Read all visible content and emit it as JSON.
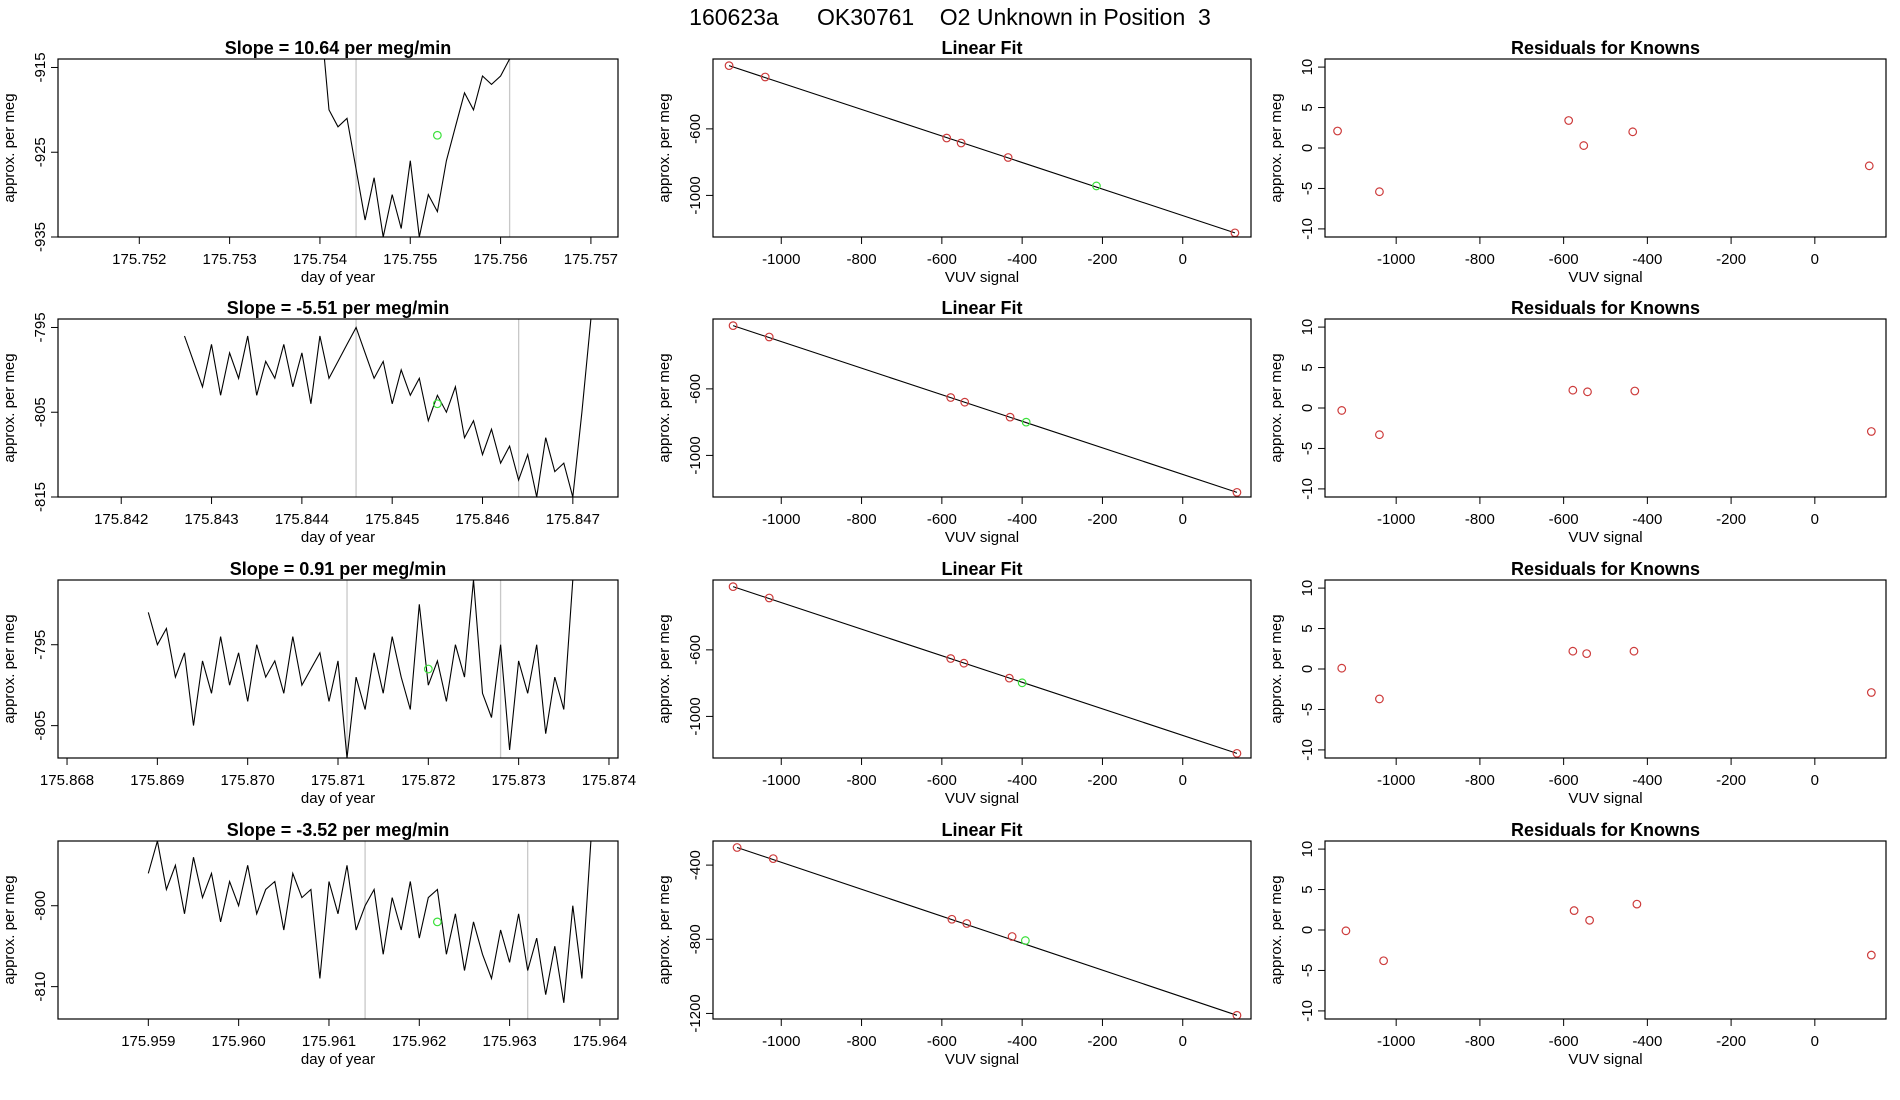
{
  "page_title": "160623a      OK30761    O2 Unknown in Position  3",
  "colors": {
    "line": "#000000",
    "known_point": "#cd3b3b",
    "unknown_point": "#3be03b",
    "vline": "#c8c8c8"
  },
  "chart_data": [
    {
      "type": "line",
      "title": "Slope =  10.64  per meg/min",
      "xlabel": "day of year",
      "ylabel": "approx. per meg",
      "xlim": [
        175.7511,
        175.7573
      ],
      "ylim": [
        -935,
        -914
      ],
      "xticks": [
        175.752,
        175.753,
        175.754,
        175.755,
        175.756,
        175.757
      ],
      "xtick_labels": [
        "175.752",
        "175.753",
        "175.754",
        "175.755",
        "175.756",
        "175.757"
      ],
      "yticks": [
        -915,
        -925,
        -935
      ],
      "ytick_labels": [
        "-915",
        "-925",
        "-935"
      ],
      "vlines": [
        175.7544,
        175.7561
      ],
      "unknown_point": {
        "x": 175.7553,
        "y": -923
      },
      "x": [
        175.754,
        175.7541,
        175.7542,
        175.7543,
        175.7544,
        175.7545,
        175.7546,
        175.7547,
        175.7548,
        175.7549,
        175.755,
        175.7551,
        175.7552,
        175.7553,
        175.7554,
        175.7555,
        175.7556,
        175.7557,
        175.7558,
        175.7559,
        175.756,
        175.7561
      ],
      "y": [
        -908,
        -920,
        -922,
        -921,
        -927,
        -933,
        -928,
        -935,
        -930,
        -934,
        -926,
        -935,
        -930,
        -932,
        -926,
        -922,
        -918,
        -920,
        -916,
        -917,
        -916,
        -914
      ]
    },
    {
      "type": "scatter",
      "title": "Linear Fit",
      "fit_line": true,
      "xlabel": "VUV signal",
      "ylabel": "approx. per meg",
      "xlim": [
        -1170,
        170
      ],
      "ylim": [
        -1250,
        -180
      ],
      "xticks": [
        -1000,
        -800,
        -600,
        -400,
        -200,
        0
      ],
      "xtick_labels": [
        "-1000",
        "-800",
        "-600",
        "-400",
        "-200",
        "0"
      ],
      "yticks": [
        -600,
        -1000
      ],
      "ytick_labels": [
        "-600",
        "-1000"
      ],
      "points": [
        {
          "x": -1130,
          "y": -220
        },
        {
          "x": -1040,
          "y": -288
        },
        {
          "x": -588,
          "y": -655
        },
        {
          "x": -552,
          "y": -685
        },
        {
          "x": -435,
          "y": -772
        },
        {
          "x": -215,
          "y": -943
        },
        {
          "x": 130,
          "y": -1225
        }
      ],
      "unknown_index": 5
    },
    {
      "type": "scatter",
      "title": "Residuals for Knowns",
      "xlabel": "VUV signal",
      "ylabel": "approx. per meg",
      "xlim": [
        -1170,
        170
      ],
      "ylim": [
        -11,
        11
      ],
      "xticks": [
        -1000,
        -800,
        -600,
        -400,
        -200,
        0
      ],
      "xtick_labels": [
        "-1000",
        "-800",
        "-600",
        "-400",
        "-200",
        "0"
      ],
      "yticks": [
        10,
        5,
        0,
        -5,
        -10
      ],
      "ytick_labels": [
        "10",
        "5",
        "0",
        "-5",
        "-10"
      ],
      "points": [
        {
          "x": -1140,
          "y": 2.1
        },
        {
          "x": -1040,
          "y": -5.4
        },
        {
          "x": -588,
          "y": 3.4
        },
        {
          "x": -552,
          "y": 0.3
        },
        {
          "x": -435,
          "y": 2.0
        },
        {
          "x": 130,
          "y": -2.2
        }
      ]
    },
    {
      "type": "line",
      "title": "Slope =  -5.51  per meg/min",
      "xlabel": "day of year",
      "ylabel": "approx. per meg",
      "xlim": [
        175.8413,
        175.8475
      ],
      "ylim": [
        -815,
        -794
      ],
      "xticks": [
        175.842,
        175.843,
        175.844,
        175.845,
        175.846,
        175.847
      ],
      "xtick_labels": [
        "175.842",
        "175.843",
        "175.844",
        "175.845",
        "175.846",
        "175.847"
      ],
      "yticks": [
        -795,
        -805,
        -815
      ],
      "ytick_labels": [
        "-795",
        "-805",
        "-815"
      ],
      "vlines": [
        175.8446,
        175.8464
      ],
      "unknown_point": {
        "x": 175.8455,
        "y": -804
      },
      "x": [
        175.8427,
        175.8428,
        175.8429,
        175.843,
        175.8431,
        175.8432,
        175.8433,
        175.8434,
        175.8435,
        175.8436,
        175.8437,
        175.8438,
        175.8439,
        175.844,
        175.8441,
        175.8442,
        175.8443,
        175.8444,
        175.8445,
        175.8446,
        175.8447,
        175.8448,
        175.8449,
        175.845,
        175.8451,
        175.8452,
        175.8453,
        175.8454,
        175.8455,
        175.8456,
        175.8457,
        175.8458,
        175.8459,
        175.846,
        175.8461,
        175.8462,
        175.8463,
        175.8464,
        175.8465,
        175.8466,
        175.8467,
        175.8468,
        175.8469,
        175.847,
        175.8471,
        175.8472
      ],
      "y": [
        -796,
        -799,
        -802,
        -797,
        -803,
        -798,
        -801,
        -796,
        -803,
        -799,
        -801,
        -797,
        -802,
        -798,
        -804,
        -796,
        -801,
        -799,
        -797,
        -795,
        -798,
        -801,
        -799,
        -804,
        -800,
        -803,
        -801,
        -806,
        -803,
        -805,
        -802,
        -808,
        -806,
        -810,
        -807,
        -811,
        -809,
        -813,
        -810,
        -815,
        -808,
        -812,
        -811,
        -815,
        -805,
        -794
      ]
    },
    {
      "type": "scatter",
      "title": "Linear Fit",
      "fit_line": true,
      "xlabel": "VUV signal",
      "ylabel": "approx. per meg",
      "xlim": [
        -1170,
        170
      ],
      "ylim": [
        -1250,
        -180
      ],
      "xticks": [
        -1000,
        -800,
        -600,
        -400,
        -200,
        0
      ],
      "xtick_labels": [
        "-1000",
        "-800",
        "-600",
        "-400",
        "-200",
        "0"
      ],
      "yticks": [
        -600,
        -1000
      ],
      "ytick_labels": [
        "-600",
        "-1000"
      ],
      "points": [
        {
          "x": -1120,
          "y": -220
        },
        {
          "x": -1030,
          "y": -288
        },
        {
          "x": -578,
          "y": -652
        },
        {
          "x": -543,
          "y": -680
        },
        {
          "x": -430,
          "y": -770
        },
        {
          "x": -390,
          "y": -800
        },
        {
          "x": 135,
          "y": -1222
        }
      ],
      "unknown_index": 5
    },
    {
      "type": "scatter",
      "title": "Residuals for Knowns",
      "xlabel": "VUV signal",
      "ylabel": "approx. per meg",
      "xlim": [
        -1170,
        170
      ],
      "ylim": [
        -11,
        11
      ],
      "xticks": [
        -1000,
        -800,
        -600,
        -400,
        -200,
        0
      ],
      "xtick_labels": [
        "-1000",
        "-800",
        "-600",
        "-400",
        "-200",
        "0"
      ],
      "yticks": [
        10,
        5,
        0,
        -5,
        -10
      ],
      "ytick_labels": [
        "10",
        "5",
        "0",
        "-5",
        "-10"
      ],
      "points": [
        {
          "x": -1130,
          "y": -0.3
        },
        {
          "x": -1040,
          "y": -3.3
        },
        {
          "x": -578,
          "y": 2.2
        },
        {
          "x": -543,
          "y": 2.0
        },
        {
          "x": -430,
          "y": 2.1
        },
        {
          "x": 135,
          "y": -2.9
        }
      ]
    },
    {
      "type": "line",
      "title": "Slope =  0.91  per meg/min",
      "xlabel": "day of year",
      "ylabel": "approx. per meg",
      "xlim": [
        175.8679,
        175.8741
      ],
      "ylim": [
        -809,
        -787
      ],
      "xticks": [
        175.868,
        175.869,
        175.87,
        175.871,
        175.872,
        175.873,
        175.874
      ],
      "xtick_labels": [
        "175.868",
        "175.869",
        "175.870",
        "175.871",
        "175.872",
        "175.873",
        "175.874"
      ],
      "yticks": [
        -795,
        -805
      ],
      "ytick_labels": [
        "-795",
        "-805"
      ],
      "vlines": [
        175.8711,
        175.8728
      ],
      "unknown_point": {
        "x": 175.872,
        "y": -798
      },
      "x": [
        175.8689,
        175.869,
        175.8691,
        175.8692,
        175.8693,
        175.8694,
        175.8695,
        175.8696,
        175.8697,
        175.8698,
        175.8699,
        175.87,
        175.8701,
        175.8702,
        175.8703,
        175.8704,
        175.8705,
        175.8706,
        175.8707,
        175.8708,
        175.8709,
        175.871,
        175.8711,
        175.8712,
        175.8713,
        175.8714,
        175.8715,
        175.8716,
        175.8717,
        175.8718,
        175.8719,
        175.872,
        175.8721,
        175.8722,
        175.8723,
        175.8724,
        175.8725,
        175.8726,
        175.8727,
        175.8728,
        175.8729,
        175.873,
        175.8731,
        175.8732,
        175.8733,
        175.8734,
        175.8735,
        175.8736
      ],
      "y": [
        -791,
        -795,
        -793,
        -799,
        -796,
        -805,
        -797,
        -801,
        -794,
        -800,
        -796,
        -802,
        -795,
        -799,
        -797,
        -801,
        -794,
        -800,
        -798,
        -796,
        -802,
        -797,
        -809,
        -799,
        -803,
        -796,
        -801,
        -794,
        -799,
        -803,
        -790,
        -800,
        -797,
        -802,
        -795,
        -799,
        -787,
        -801,
        -804,
        -795,
        -808,
        -797,
        -801,
        -795,
        -806,
        -799,
        -803,
        -787
      ]
    },
    {
      "type": "scatter",
      "title": "Linear Fit",
      "fit_line": true,
      "xlabel": "VUV signal",
      "ylabel": "approx. per meg",
      "xlim": [
        -1170,
        170
      ],
      "ylim": [
        -1250,
        -180
      ],
      "xticks": [
        -1000,
        -800,
        -600,
        -400,
        -200,
        0
      ],
      "xtick_labels": [
        "-1000",
        "-800",
        "-600",
        "-400",
        "-200",
        "0"
      ],
      "yticks": [
        -600,
        -1000
      ],
      "ytick_labels": [
        "-600",
        "-1000"
      ],
      "points": [
        {
          "x": -1120,
          "y": -220
        },
        {
          "x": -1030,
          "y": -288
        },
        {
          "x": -578,
          "y": -652
        },
        {
          "x": -545,
          "y": -680
        },
        {
          "x": -432,
          "y": -770
        },
        {
          "x": -400,
          "y": -798
        },
        {
          "x": 135,
          "y": -1222
        }
      ],
      "unknown_index": 5
    },
    {
      "type": "scatter",
      "title": "Residuals for Knowns",
      "xlabel": "VUV signal",
      "ylabel": "approx. per meg",
      "xlim": [
        -1170,
        170
      ],
      "ylim": [
        -11,
        11
      ],
      "xticks": [
        -1000,
        -800,
        -600,
        -400,
        -200,
        0
      ],
      "xtick_labels": [
        "-1000",
        "-800",
        "-600",
        "-400",
        "-200",
        "0"
      ],
      "yticks": [
        10,
        5,
        0,
        -5,
        -10
      ],
      "ytick_labels": [
        "10",
        "5",
        "0",
        "-5",
        "-10"
      ],
      "points": [
        {
          "x": -1130,
          "y": 0.1
        },
        {
          "x": -1040,
          "y": -3.7
        },
        {
          "x": -578,
          "y": 2.2
        },
        {
          "x": -545,
          "y": 1.9
        },
        {
          "x": -432,
          "y": 2.2
        },
        {
          "x": 135,
          "y": -2.9
        }
      ]
    },
    {
      "type": "line",
      "title": "Slope =  -3.52  per meg/min",
      "xlabel": "day of year",
      "ylabel": "approx. per meg",
      "xlim": [
        175.958,
        175.9642
      ],
      "ylim": [
        -814,
        -792
      ],
      "xticks": [
        175.959,
        175.96,
        175.961,
        175.962,
        175.963,
        175.964
      ],
      "xtick_labels": [
        "175.959",
        "175.960",
        "175.961",
        "175.962",
        "175.963",
        "175.964"
      ],
      "yticks": [
        -800,
        -810
      ],
      "ytick_labels": [
        "-800",
        "-810"
      ],
      "vlines": [
        175.9614,
        175.9632
      ],
      "unknown_point": {
        "x": 175.9622,
        "y": -802
      },
      "x": [
        175.959,
        175.9591,
        175.9592,
        175.9593,
        175.9594,
        175.9595,
        175.9596,
        175.9597,
        175.9598,
        175.9599,
        175.96,
        175.9601,
        175.9602,
        175.9603,
        175.9604,
        175.9605,
        175.9606,
        175.9607,
        175.9608,
        175.9609,
        175.961,
        175.9611,
        175.9612,
        175.9613,
        175.9614,
        175.9615,
        175.9616,
        175.9617,
        175.9618,
        175.9619,
        175.962,
        175.9621,
        175.9622,
        175.9623,
        175.9624,
        175.9625,
        175.9626,
        175.9627,
        175.9628,
        175.9629,
        175.963,
        175.9631,
        175.9632,
        175.9633,
        175.9634,
        175.9635,
        175.9636,
        175.9637,
        175.9638,
        175.9639
      ],
      "y": [
        -796,
        -792,
        -798,
        -795,
        -801,
        -794,
        -799,
        -796,
        -802,
        -797,
        -800,
        -795,
        -801,
        -798,
        -797,
        -803,
        -796,
        -799,
        -798,
        -809,
        -797,
        -801,
        -795,
        -803,
        -800,
        -798,
        -806,
        -799,
        -803,
        -797,
        -804,
        -799,
        -798,
        -806,
        -801,
        -808,
        -802,
        -806,
        -809,
        -803,
        -807,
        -801,
        -808,
        -804,
        -811,
        -805,
        -812,
        -800,
        -809,
        -792
      ]
    },
    {
      "type": "scatter",
      "title": "Linear Fit",
      "fit_line": true,
      "xlabel": "VUV signal",
      "ylabel": "approx. per meg",
      "xlim": [
        -1170,
        170
      ],
      "ylim": [
        -1230,
        -270
      ],
      "xticks": [
        -1000,
        -800,
        -600,
        -400,
        -200,
        0
      ],
      "xtick_labels": [
        "-1000",
        "-800",
        "-600",
        "-400",
        "-200",
        "0"
      ],
      "yticks": [
        -400,
        -800,
        -1200
      ],
      "ytick_labels": [
        "-400",
        "-800",
        "-1200"
      ],
      "points": [
        {
          "x": -1110,
          "y": -305
        },
        {
          "x": -1020,
          "y": -365
        },
        {
          "x": -575,
          "y": -692
        },
        {
          "x": -538,
          "y": -715
        },
        {
          "x": -425,
          "y": -785
        },
        {
          "x": -392,
          "y": -807
        },
        {
          "x": 135,
          "y": -1210
        }
      ],
      "unknown_index": 5
    },
    {
      "type": "scatter",
      "title": "Residuals for Knowns",
      "xlabel": "VUV signal",
      "ylabel": "approx. per meg",
      "xlim": [
        -1170,
        170
      ],
      "ylim": [
        -11,
        11
      ],
      "xticks": [
        -1000,
        -800,
        -600,
        -400,
        -200,
        0
      ],
      "xtick_labels": [
        "-1000",
        "-800",
        "-600",
        "-400",
        "-200",
        "0"
      ],
      "yticks": [
        10,
        5,
        0,
        -5,
        -10
      ],
      "ytick_labels": [
        "10",
        "5",
        "0",
        "-5",
        "-10"
      ],
      "points": [
        {
          "x": -1120,
          "y": -0.1
        },
        {
          "x": -1030,
          "y": -3.8
        },
        {
          "x": -575,
          "y": 2.4
        },
        {
          "x": -538,
          "y": 1.2
        },
        {
          "x": -425,
          "y": 3.2
        },
        {
          "x": 135,
          "y": -3.1
        }
      ]
    }
  ]
}
